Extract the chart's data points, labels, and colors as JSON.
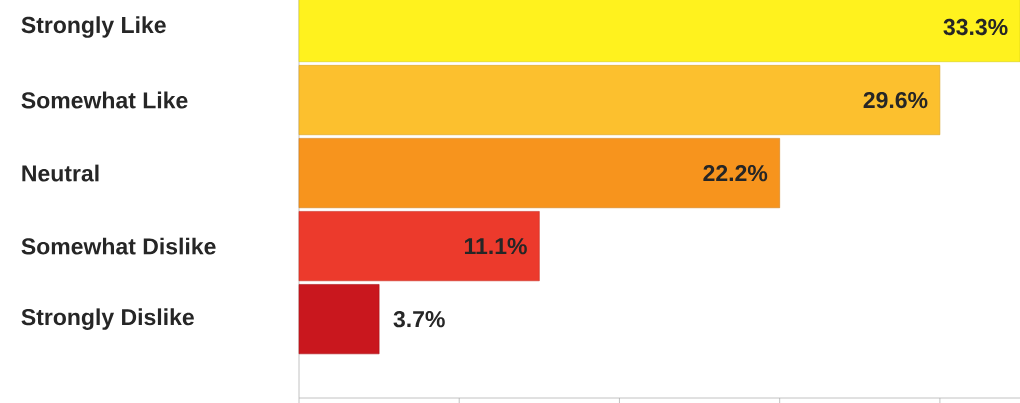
{
  "chart_data": {
    "type": "bar",
    "orientation": "horizontal",
    "categories": [
      "Strongly Like",
      "Somewhat Like",
      "Neutral",
      "Somewhat Dislike",
      "Strongly Dislike"
    ],
    "values": [
      33.3,
      29.6,
      22.2,
      11.1,
      3.7
    ],
    "value_labels": [
      "33.3%",
      "29.6%",
      "22.2%",
      "11.1%",
      "3.7%"
    ],
    "colors": [
      "#fff21e",
      "#fcc02e",
      "#f7941d",
      "#ec3a2c",
      "#c9171e"
    ],
    "xlim": [
      0,
      33.3
    ],
    "xticks": [
      {
        "value": 0,
        "label": null
      },
      {
        "value": 7.4,
        "label": null
      },
      {
        "value": 14.8,
        "label": null
      },
      {
        "value": 22.2,
        "label": null
      },
      {
        "value": 29.6,
        "label": null
      }
    ]
  }
}
